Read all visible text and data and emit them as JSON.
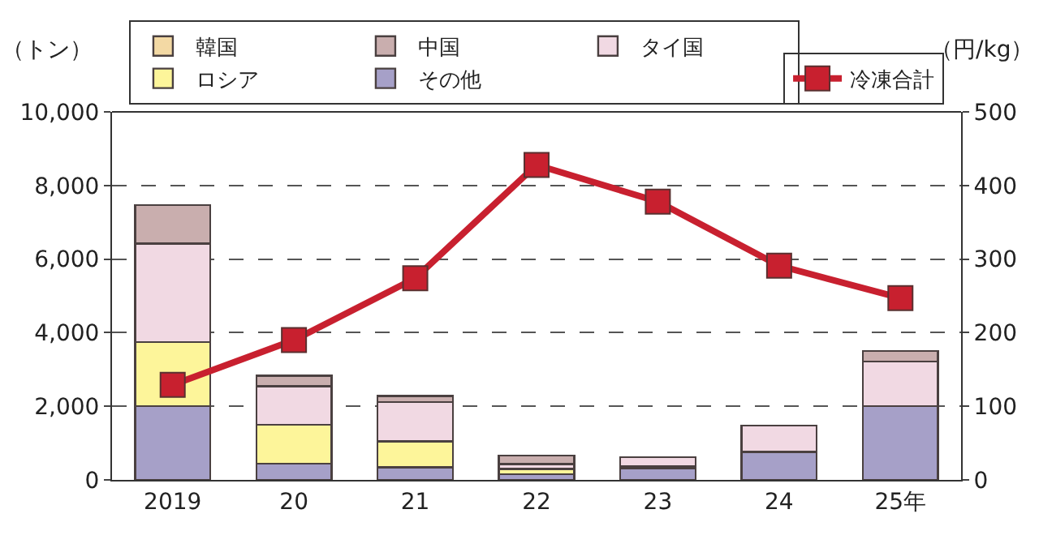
{
  "chart_data": {
    "type": "bar",
    "stacked": true,
    "ylabel": "（トン）",
    "y2label": "（円/kg）",
    "categories": [
      "2019",
      "20",
      "21",
      "22",
      "23",
      "24",
      "25年"
    ],
    "series": [
      {
        "name": "その他",
        "color": "#a6a0c8",
        "values": [
          2000,
          440,
          340,
          150,
          320,
          760,
          2000
        ]
      },
      {
        "name": "ロシア",
        "color": "#fdf59a",
        "values": [
          1750,
          1060,
          710,
          150,
          60,
          null,
          null
        ]
      },
      {
        "name": "タイ国",
        "color": "#f1d9e3",
        "values": [
          2670,
          1040,
          1070,
          130,
          240,
          720,
          1220
        ]
      },
      {
        "name": "中国",
        "color": "#c9aeae",
        "values": [
          1050,
          290,
          160,
          230,
          null,
          null,
          280
        ]
      },
      {
        "name": "韓国",
        "color": "#f3d9a4",
        "values": [
          null,
          null,
          null,
          null,
          null,
          null,
          null
        ]
      },
      {
        "name": "冷凍合計",
        "color": "#c8202f",
        "type": "line",
        "axis": "y2",
        "marker": "square",
        "values": [
          129,
          190,
          274,
          428,
          378,
          291,
          247
        ]
      }
    ],
    "ylim": [
      0,
      10000
    ],
    "yticks": [
      0,
      {
        "value": 2000,
        "label": "2,000"
      },
      {
        "value": 4000,
        "label": "4,000"
      },
      {
        "value": 6000,
        "label": "6,000"
      },
      {
        "value": 8000,
        "label": "8,000"
      },
      {
        "value": 10000,
        "label": "10,000"
      }
    ],
    "y2lim": [
      0,
      500
    ],
    "y2ticks": [
      0,
      100,
      200,
      300,
      400,
      500
    ],
    "grid": "y",
    "legend": "top"
  }
}
